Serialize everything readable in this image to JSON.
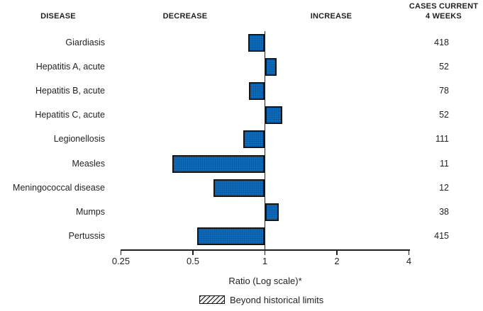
{
  "header": {
    "disease": "DISEASE",
    "decrease": "DECREASE",
    "increase": "INCREASE",
    "cases_line1": "CASES CURRENT",
    "cases_line2": "4 WEEKS"
  },
  "chart_data": {
    "type": "bar",
    "subtype": "horizontal-log-ratio-deviation",
    "baseline": 1,
    "xlabel": "Ratio (Log scale)*",
    "x_ticks": [
      0.25,
      0.5,
      1,
      2,
      4
    ],
    "x_tick_labels": [
      "0.25",
      "0.5",
      "1",
      "2",
      "4"
    ],
    "xlim": [
      0.25,
      4
    ],
    "grid": false,
    "legend": {
      "label": "Beyond historical limits",
      "swatch": "diagonal-hatch",
      "position": "bottom-center"
    },
    "colors": {
      "bar_fill": "#0d6ebf",
      "bar_border": "#141414",
      "axis": "#231f20",
      "text": "#231f20"
    },
    "rows": [
      {
        "disease": "Giardiasis",
        "ratio": 0.85,
        "cases": "418",
        "beyond_limits": false
      },
      {
        "disease": "Hepatitis A, acute",
        "ratio": 1.12,
        "cases": "52",
        "beyond_limits": false
      },
      {
        "disease": "Hepatitis B, acute",
        "ratio": 0.86,
        "cases": "78",
        "beyond_limits": false
      },
      {
        "disease": "Hepatitis C, acute",
        "ratio": 1.18,
        "cases": "52",
        "beyond_limits": false
      },
      {
        "disease": "Legionellosis",
        "ratio": 0.81,
        "cases": "111",
        "beyond_limits": false
      },
      {
        "disease": "Measles",
        "ratio": 0.41,
        "cases": "11",
        "beyond_limits": false
      },
      {
        "disease": "Meningococcal disease",
        "ratio": 0.61,
        "cases": "12",
        "beyond_limits": false
      },
      {
        "disease": "Mumps",
        "ratio": 1.14,
        "cases": "38",
        "beyond_limits": false
      },
      {
        "disease": "Pertussis",
        "ratio": 0.52,
        "cases": "415",
        "beyond_limits": false
      }
    ]
  }
}
